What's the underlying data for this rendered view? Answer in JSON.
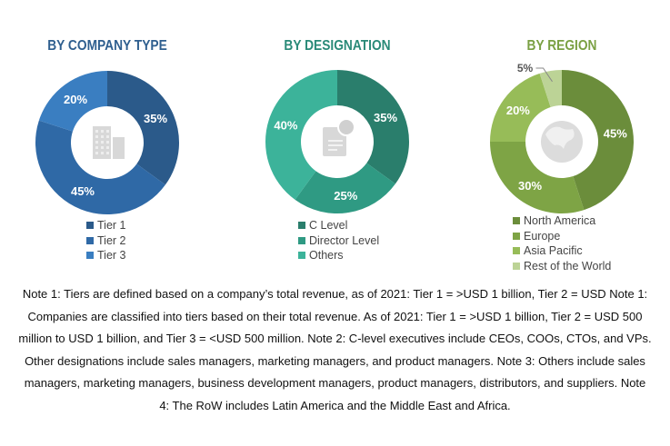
{
  "chart_data": [
    {
      "type": "pie",
      "title": "BY COMPANY TYPE",
      "title_color": "#2f5f8f",
      "categories": [
        "Tier 1",
        "Tier 2",
        "Tier 3"
      ],
      "values": [
        35,
        45,
        20
      ],
      "labels": [
        "35%",
        "45%",
        "20%"
      ],
      "colors": [
        "#2b5a8a",
        "#2f69a6",
        "#3a7ec1"
      ],
      "center_icon": "building-icon"
    },
    {
      "type": "pie",
      "title": "BY DESIGNATION",
      "title_color": "#2a8a78",
      "categories": [
        "C Level",
        "Director Level",
        "Others"
      ],
      "values": [
        35,
        25,
        40
      ],
      "labels": [
        "35%",
        "25%",
        "40%"
      ],
      "colors": [
        "#2a7e6c",
        "#2f9a83",
        "#3cb39a"
      ],
      "center_icon": "document-icon"
    },
    {
      "type": "pie",
      "title": "BY REGION",
      "title_color": "#7aa043",
      "categories": [
        "North America",
        "Europe",
        "Asia Pacific",
        "Rest of the World"
      ],
      "values": [
        45,
        30,
        20,
        5
      ],
      "labels": [
        "45%",
        "30%",
        "20%",
        "5%"
      ],
      "colors": [
        "#6b8d3b",
        "#7ea445",
        "#97bc58",
        "#bcd396"
      ],
      "center_icon": "globe-icon"
    }
  ],
  "notes": [
    "Note 1: Tiers are defined based on a company’s total revenue, as of 2021: Tier 1 = >USD 1 billion, Tier 2 = USD Note 1:",
    "Companies are classified into tiers based on their total revenue. As of 2021: Tier 1 = >USD 1 billion, Tier 2 = USD 500",
    "million to USD 1 billion, and Tier 3 = <USD 500 million. Note 2: C-level executives include CEOs, COOs, CTOs, and VPs.",
    "Other designations include sales managers, marketing managers, and product managers. Note 3: Others include sales",
    "managers, marketing managers, business development managers, product managers, distributors, and suppliers. Note",
    "4: The RoW includes Latin America and the Middle East and Africa."
  ]
}
